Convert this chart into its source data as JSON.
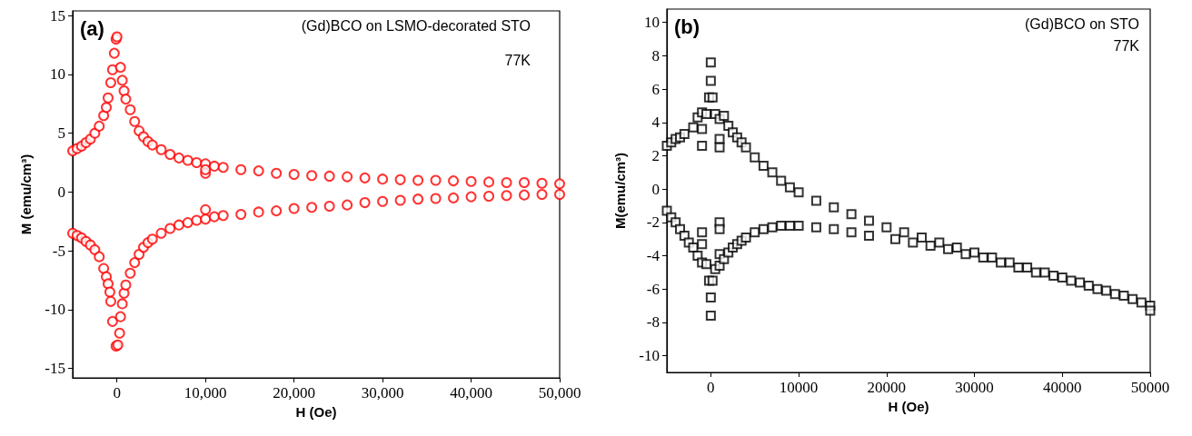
{
  "chart_data": [
    {
      "type": "scatter",
      "xlabel": "H (Oe)",
      "ylabel": "M (emu/cm³)",
      "marker": "circle",
      "annotations": [
        "(a)",
        "(Gd)BCO on LSMO-decorated STO",
        "77K"
      ],
      "xlim": [
        -5000,
        50000
      ],
      "xticks": [
        0,
        {
          "value": 10000,
          "label": "10,000"
        },
        {
          "value": 20000,
          "label": "20,000"
        },
        {
          "value": 30000,
          "label": "30,000"
        },
        {
          "value": 40000,
          "label": "40,000"
        },
        {
          "value": 50000,
          "label": "50,000"
        }
      ],
      "ylim": [
        -15.8,
        15.4
      ],
      "yticks": [
        -15,
        -10,
        -5,
        0,
        5,
        10,
        15
      ],
      "series": [
        {
          "color": "#ff0000",
          "x": [
            -5000,
            -4500,
            -4000,
            -3500,
            -3000,
            -2500,
            -2000,
            -1500,
            -1200,
            -1000,
            -700,
            -500,
            -300,
            -100,
            0,
            400,
            600,
            800,
            1000,
            1500,
            2000,
            2500,
            3000,
            3500,
            4000,
            5000,
            6000,
            7000,
            8000,
            9000,
            10000,
            10000,
            10000,
            11000,
            12000,
            14000,
            16000,
            18000,
            20000,
            22000,
            24000,
            26000,
            28000,
            30000,
            32000,
            34000,
            36000,
            38000,
            40000,
            42000,
            44000,
            46000,
            48000,
            50000
          ],
          "values": [
            3.5,
            3.7,
            3.9,
            4.2,
            4.5,
            5.0,
            5.6,
            6.5,
            7.2,
            8.0,
            9.3,
            10.4,
            11.8,
            13.0,
            13.2,
            10.6,
            9.5,
            8.6,
            7.9,
            7.0,
            6.0,
            5.2,
            4.7,
            4.3,
            4.0,
            3.6,
            3.2,
            2.9,
            2.7,
            2.5,
            2.4,
            1.6,
            1.9,
            2.2,
            2.1,
            1.9,
            1.8,
            1.6,
            1.5,
            1.4,
            1.35,
            1.3,
            1.2,
            1.1,
            1.05,
            1.0,
            1.0,
            0.95,
            0.9,
            0.85,
            0.8,
            0.8,
            0.75,
            0.7
          ]
        },
        {
          "color": "#ff0000",
          "x": [
            -5000,
            -4500,
            -4000,
            -3500,
            -3000,
            -2500,
            -2000,
            -1500,
            -1200,
            -1000,
            -800,
            -700,
            -500,
            -100,
            100,
            300,
            400,
            600,
            800,
            1000,
            1500,
            2000,
            2500,
            3000,
            3500,
            4000,
            5000,
            6000,
            7000,
            8000,
            9000,
            10000,
            10000,
            11000,
            12000,
            14000,
            16000,
            18000,
            20000,
            22000,
            24000,
            26000,
            28000,
            30000,
            32000,
            34000,
            36000,
            38000,
            40000,
            42000,
            44000,
            46000,
            48000,
            50000
          ],
          "values": [
            -3.5,
            -3.7,
            -3.9,
            -4.2,
            -4.5,
            -4.9,
            -5.5,
            -6.5,
            -7.2,
            -7.8,
            -8.5,
            -9.3,
            -11.0,
            -13.1,
            -13.0,
            -12.0,
            -10.6,
            -9.5,
            -8.6,
            -7.9,
            -6.9,
            -6.0,
            -5.3,
            -4.7,
            -4.3,
            -4.0,
            -3.5,
            -3.1,
            -2.8,
            -2.6,
            -2.4,
            -2.3,
            -1.5,
            -2.1,
            -2.0,
            -1.9,
            -1.7,
            -1.6,
            -1.4,
            -1.3,
            -1.2,
            -1.1,
            -0.9,
            -0.8,
            -0.7,
            -0.6,
            -0.55,
            -0.5,
            -0.4,
            -0.35,
            -0.3,
            -0.25,
            -0.2,
            -0.2
          ]
        }
      ]
    },
    {
      "type": "scatter",
      "xlabel": "H (Oe)",
      "ylabel": "M(emu/cm³)",
      "marker": "square",
      "annotations": [
        "(b)",
        "(Gd)BCO on STO",
        "77K"
      ],
      "xlim": [
        -5000,
        50000
      ],
      "xticks": [
        0,
        10000,
        20000,
        30000,
        40000,
        50000
      ],
      "ylim": [
        -11,
        10.8
      ],
      "yticks": [
        -10,
        -8,
        -6,
        -4,
        -2,
        0,
        2,
        4,
        6,
        8,
        10
      ],
      "series": [
        {
          "color": "#000000",
          "x": [
            -5000,
            -4500,
            -4000,
            -3500,
            -3000,
            -2000,
            -1500,
            -1000,
            -1000,
            -1000,
            -500,
            -200,
            0,
            0,
            200,
            500,
            1000,
            1000,
            1000,
            1500,
            2000,
            2500,
            3000,
            3500,
            4000,
            5000,
            6000,
            7000,
            8000,
            9000,
            10000,
            12000,
            14000,
            16000,
            18000,
            20000,
            22000,
            24000,
            26000,
            28000,
            30000,
            32000,
            34000,
            36000,
            38000,
            40000,
            42000,
            44000,
            46000,
            48000,
            50000
          ],
          "values": [
            2.6,
            2.8,
            3.0,
            3.1,
            3.3,
            3.7,
            4.3,
            4.6,
            3.6,
            2.6,
            4.5,
            5.5,
            7.6,
            6.5,
            5.5,
            4.5,
            4.2,
            3.0,
            2.5,
            4.4,
            3.8,
            3.4,
            3.1,
            2.8,
            2.5,
            1.9,
            1.4,
            1.0,
            0.5,
            0.1,
            -0.2,
            -0.7,
            -1.1,
            -1.5,
            -1.9,
            -2.3,
            -2.6,
            -2.9,
            -3.2,
            -3.5,
            -3.8,
            -4.1,
            -4.4,
            -4.7,
            -5.0,
            -5.3,
            -5.6,
            -6.0,
            -6.3,
            -6.6,
            -7.0
          ]
        },
        {
          "color": "#000000",
          "x": [
            -5000,
            -4500,
            -4000,
            -3500,
            -3000,
            -2500,
            -2000,
            -1500,
            -1000,
            -1000,
            -1000,
            -500,
            -200,
            0,
            0,
            200,
            500,
            1000,
            1000,
            1000,
            1000,
            1500,
            2000,
            2500,
            3000,
            3500,
            4000,
            5000,
            6000,
            7000,
            8000,
            9000,
            10000,
            12000,
            14000,
            16000,
            18000,
            21000,
            23000,
            25000,
            27000,
            29000,
            31000,
            33000,
            35000,
            37000,
            39000,
            41000,
            43000,
            45000,
            47000,
            49000,
            50000
          ],
          "values": [
            -1.3,
            -1.7,
            -2.0,
            -2.4,
            -2.8,
            -3.2,
            -3.5,
            -4.0,
            -4.4,
            -3.3,
            -2.6,
            -4.5,
            -5.5,
            -7.6,
            -6.5,
            -5.5,
            -4.8,
            -4.6,
            -2.0,
            -2.4,
            -3.9,
            -4.2,
            -3.8,
            -3.5,
            -3.3,
            -3.1,
            -2.9,
            -2.6,
            -2.4,
            -2.3,
            -2.2,
            -2.2,
            -2.2,
            -2.3,
            -2.4,
            -2.6,
            -2.8,
            -3.0,
            -3.2,
            -3.4,
            -3.6,
            -3.9,
            -4.1,
            -4.4,
            -4.7,
            -5.0,
            -5.2,
            -5.5,
            -5.8,
            -6.1,
            -6.4,
            -6.8,
            -7.3
          ]
        }
      ]
    }
  ]
}
